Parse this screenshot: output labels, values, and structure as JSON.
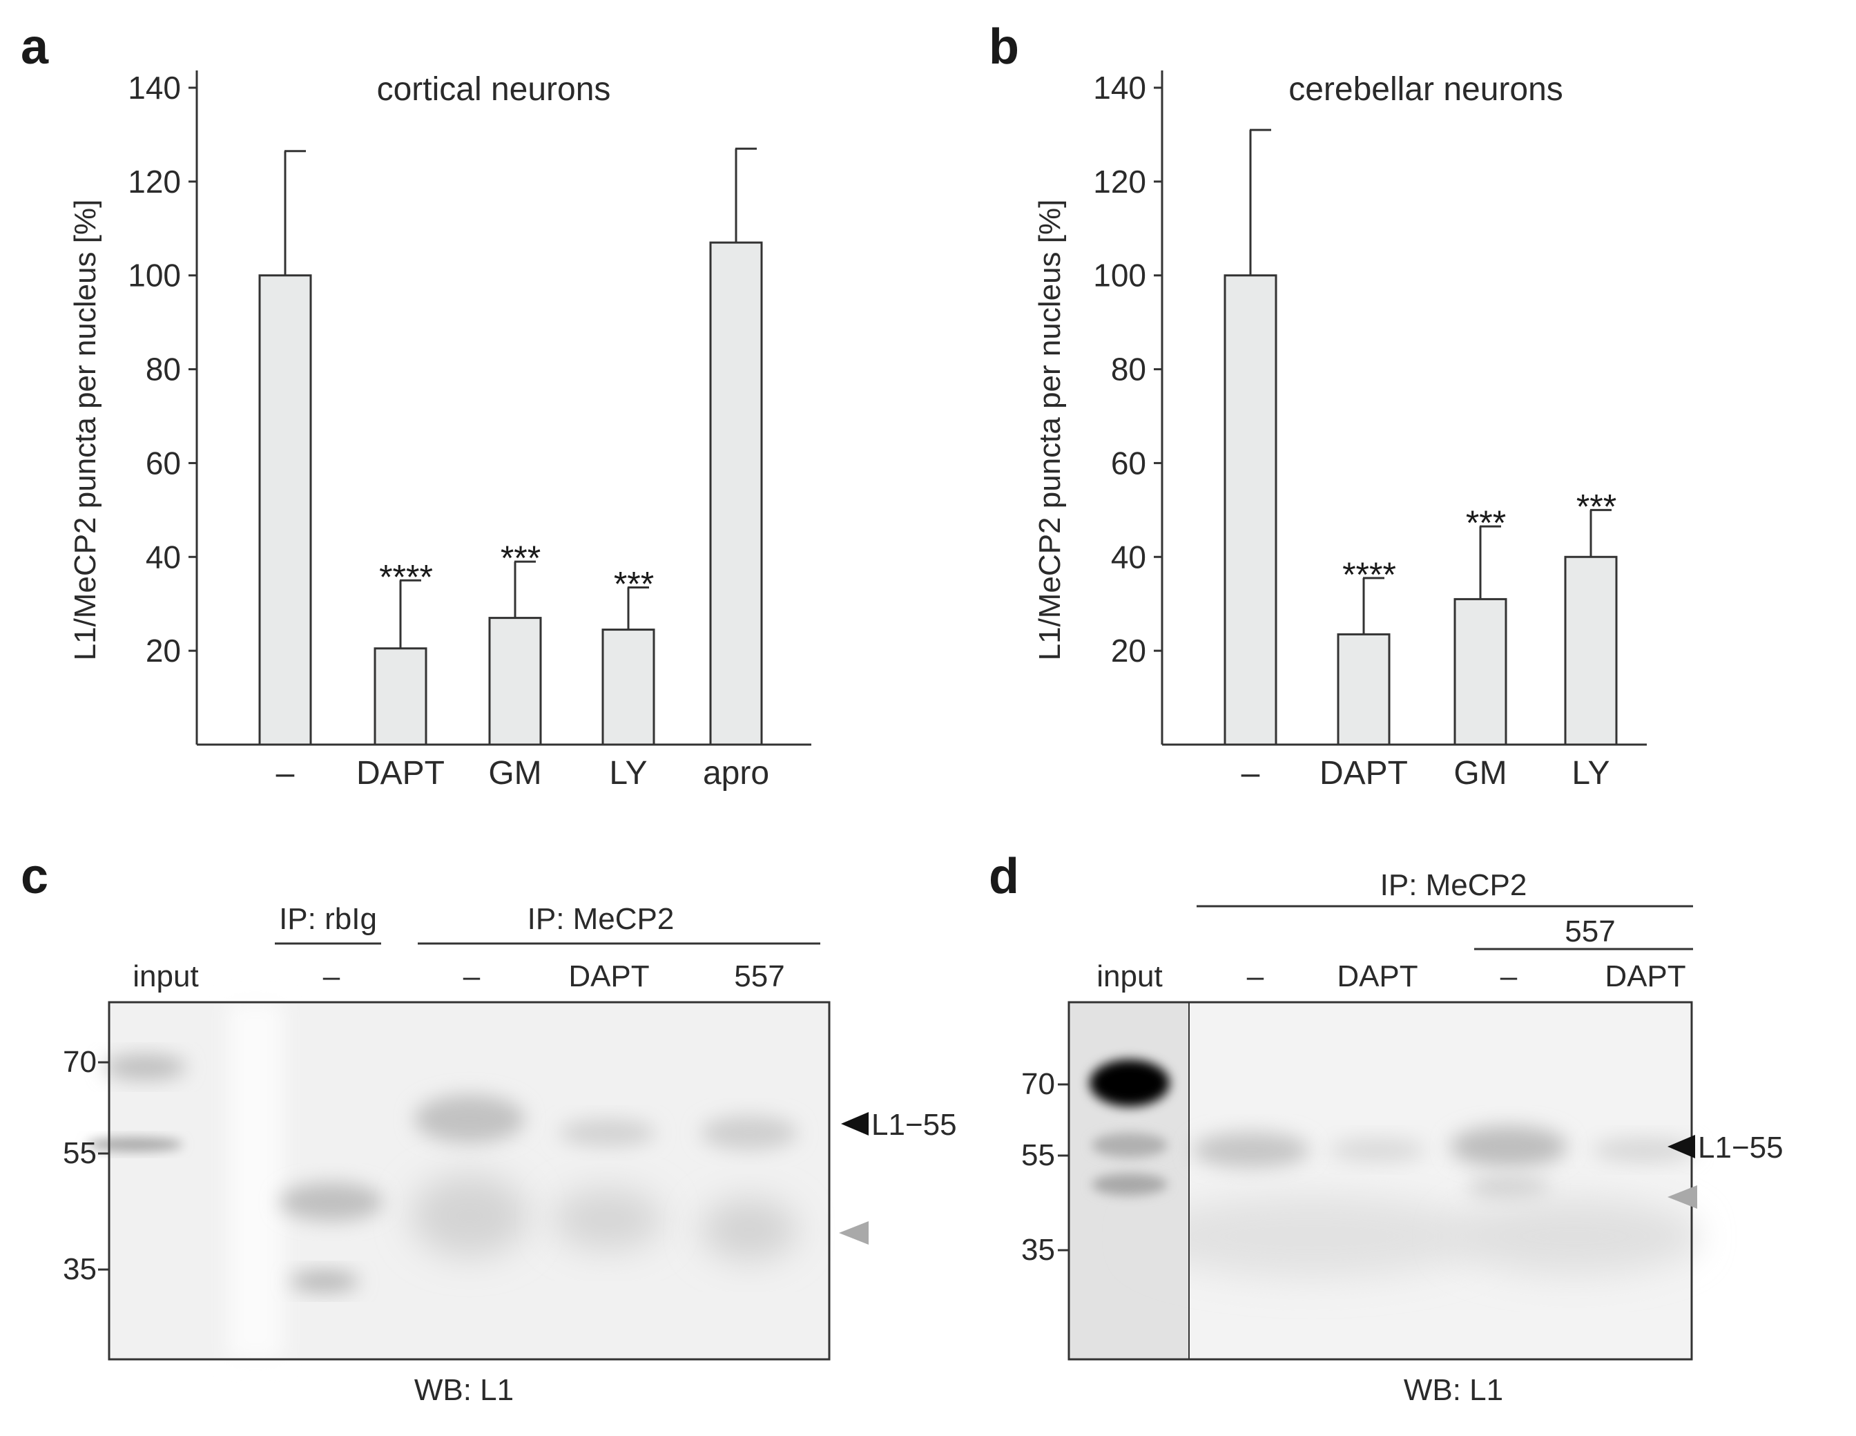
{
  "chart_data": [
    {
      "panel": "a",
      "type": "bar",
      "title": "cortical neurons",
      "ylabel": "L1/MeCP2 puncta per nucleus [%]",
      "xlabel": "",
      "ylim": [
        0,
        140
      ],
      "yticks": [
        20,
        40,
        60,
        80,
        100,
        120,
        140
      ],
      "categories": [
        "–",
        "DAPT",
        "GM",
        "LY",
        "apro"
      ],
      "values": [
        100,
        20.5,
        27,
        24.5,
        107
      ],
      "errors": [
        26.5,
        14.5,
        12,
        9,
        20
      ],
      "significance": [
        "",
        "****",
        "***",
        "***",
        ""
      ],
      "grid": false
    },
    {
      "panel": "b",
      "type": "bar",
      "title": "cerebellar neurons",
      "ylabel": "L1/MeCP2 puncta per nucleus [%]",
      "xlabel": "",
      "ylim": [
        0,
        140
      ],
      "yticks": [
        20,
        40,
        60,
        80,
        100,
        120,
        140
      ],
      "categories": [
        "–",
        "DAPT",
        "GM",
        "LY"
      ],
      "values": [
        100,
        23.5,
        31,
        40
      ],
      "errors": [
        31,
        12,
        15.5,
        10
      ],
      "significance": [
        "",
        "****",
        "***",
        "***"
      ],
      "grid": false
    }
  ],
  "blots": {
    "c": {
      "letter": "c",
      "group_rblg": "IP: rbIg",
      "group_mecp2": "IP: MeCP2",
      "lanes": [
        "input",
        "–",
        "–",
        "DAPT",
        "557"
      ],
      "markers": [
        "70",
        "55",
        "35"
      ],
      "arrow_label": "L1−55",
      "footer": "WB: L1"
    },
    "d": {
      "letter": "d",
      "group_mecp2": "IP: MeCP2",
      "group_557": "557",
      "lanes": [
        "input",
        "–",
        "DAPT",
        "–",
        "DAPT"
      ],
      "markers": [
        "70",
        "55",
        "35"
      ],
      "arrow_label": "L1−55",
      "footer": "WB: L1"
    }
  },
  "panel_letters": {
    "a": "a",
    "b": "b"
  },
  "colors": {
    "bar_fill": "#e8eaea",
    "axis": "#333333",
    "grey_arrow": "#a9a9a9"
  }
}
